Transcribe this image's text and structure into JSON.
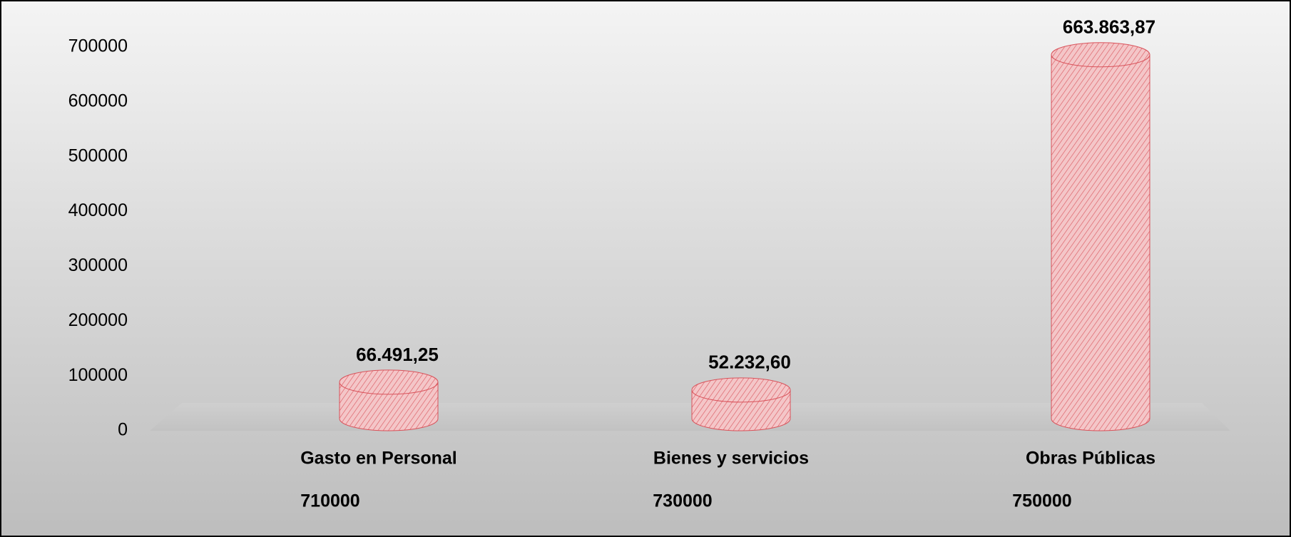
{
  "chart_data": {
    "type": "cylinder",
    "categories": [
      "Gasto en Personal",
      "Bienes y servicios",
      "Obras Públicas"
    ],
    "category_codes": [
      "710000",
      "730000",
      "750000"
    ],
    "values": [
      66491.25,
      52232.6,
      663863.87
    ],
    "value_labels": [
      "66.491,25",
      "52.232,60",
      "663.863,87"
    ],
    "color": "#f4c6c8",
    "hatch_color": "#d9535b",
    "ylim": [
      0,
      700000
    ],
    "yticks": [
      0,
      100000,
      200000,
      300000,
      400000,
      500000,
      600000,
      700000
    ],
    "grid": false
  }
}
